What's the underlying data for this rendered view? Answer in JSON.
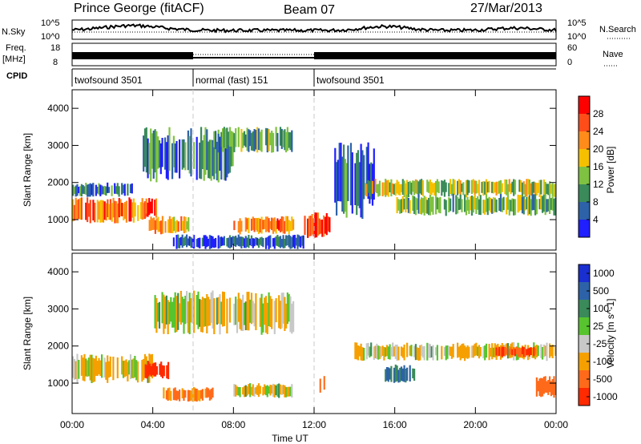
{
  "header": {
    "radar": "Prince George (fitACF)",
    "beam": "Beam 07",
    "date": "27/Mar/2013"
  },
  "summary": {
    "left_labels": {
      "nsky": "N.Sky",
      "freq": "Freq.",
      "freq_unit": "[MHz]",
      "cpid": "CPID"
    },
    "right_labels": {
      "nsearch": "N.Search",
      "nave": "Nave"
    },
    "nsky_ticks": [
      "10^5",
      "10^0"
    ],
    "nsearch_ticks": [
      "10^5",
      "10^0"
    ],
    "freq_ticks": [
      "18",
      "8"
    ],
    "nave_ticks": [
      "60",
      "0"
    ],
    "cpid_segments": [
      {
        "label": "twofsound 3501",
        "start_hour": 0,
        "end_hour": 6
      },
      {
        "label": "normal (fast) 151",
        "start_hour": 6,
        "end_hour": 12
      },
      {
        "label": "twofsound 3501",
        "start_hour": 12,
        "end_hour": 24
      }
    ]
  },
  "chart_data": [
    {
      "type": "heatmap",
      "title": "",
      "xlabel": "",
      "ylabel": "Slant Range [km]",
      "xlim": [
        0,
        24
      ],
      "ylim": [
        180,
        4500
      ],
      "y_ticks": [
        "1000",
        "2000",
        "3000",
        "4000"
      ],
      "colorbar": {
        "label": "Power [dB]",
        "range": [
          0,
          30
        ],
        "ticks": [
          "4",
          "8",
          "12",
          "16",
          "20",
          "24",
          "28"
        ],
        "colors": [
          "#1f1fff",
          "#2d62a8",
          "#3a8a5a",
          "#7fc241",
          "#f5c000",
          "#ff8c1a",
          "#ff4d1a",
          "#ff0000"
        ]
      },
      "echo_bands": [
        {
          "range_km": [
            900,
            1600
          ],
          "hours": [
            0,
            3.8
          ],
          "power_db": 22
        },
        {
          "range_km": [
            1600,
            2000
          ],
          "hours": [
            0,
            3
          ],
          "power_db": 8
        },
        {
          "range_km": [
            1000,
            1600
          ],
          "hours": [
            3.5,
            4.2
          ],
          "power_db": 24
        },
        {
          "range_km": [
            600,
            1100
          ],
          "hours": [
            3.8,
            5.8
          ],
          "power_db": 18
        },
        {
          "range_km": [
            2000,
            3500
          ],
          "hours": [
            3.5,
            8
          ],
          "power_db": 8
        },
        {
          "range_km": [
            2800,
            3500
          ],
          "hours": [
            7,
            11
          ],
          "power_db": 10
        },
        {
          "range_km": [
            600,
            1100
          ],
          "hours": [
            8,
            11
          ],
          "power_db": 22
        },
        {
          "range_km": [
            500,
            1200
          ],
          "hours": [
            11.5,
            12.8
          ],
          "power_db": 26
        },
        {
          "range_km": [
            1000,
            3100
          ],
          "hours": [
            13,
            15
          ],
          "power_db": 6
        },
        {
          "range_km": [
            1600,
            2100
          ],
          "hours": [
            14.5,
            24
          ],
          "power_db": 14
        },
        {
          "range_km": [
            1100,
            1700
          ],
          "hours": [
            16,
            24
          ],
          "power_db": 12
        },
        {
          "range_km": [
            200,
            600
          ],
          "hours": [
            5,
            11.5
          ],
          "power_db": 5
        }
      ]
    },
    {
      "type": "heatmap",
      "title": "",
      "xlabel": "Time UT",
      "ylabel": "Slant Range [km]",
      "xlim": [
        0,
        24
      ],
      "ylim": [
        180,
        4500
      ],
      "x_ticks": [
        "00:00",
        "04:00",
        "08:00",
        "12:00",
        "16:00",
        "20:00",
        "00:00"
      ],
      "y_ticks": [
        "1000",
        "2000",
        "3000",
        "4000"
      ],
      "colorbar": {
        "label": "Velocity [m s^-1]",
        "ticks": [
          "1000",
          "500",
          "100",
          "25",
          "-25",
          "-100",
          "-500",
          "-1000"
        ],
        "colors": [
          "#1a2fd0",
          "#2d62a8",
          "#3a8a5a",
          "#57c42f",
          "#c8c8c8",
          "#f5a000",
          "#ff6a1a",
          "#ff2a00"
        ]
      },
      "echo_bands": [
        {
          "range_km": [
            1000,
            1800
          ],
          "hours": [
            0,
            4
          ],
          "velocity": 0
        },
        {
          "range_km": [
            1100,
            1600
          ],
          "hours": [
            3.6,
            4.8
          ],
          "velocity": -800
        },
        {
          "range_km": [
            500,
            900
          ],
          "hours": [
            4.5,
            7
          ],
          "velocity": -300
        },
        {
          "range_km": [
            2300,
            3500
          ],
          "hours": [
            4,
            11
          ],
          "velocity": 0
        },
        {
          "range_km": [
            600,
            1000
          ],
          "hours": [
            8,
            11
          ],
          "velocity": 0
        },
        {
          "range_km": [
            700,
            1200
          ],
          "hours": [
            12.2,
            12.6
          ],
          "velocity": -200
        },
        {
          "range_km": [
            1600,
            2100
          ],
          "hours": [
            14,
            24
          ],
          "velocity": 0
        },
        {
          "range_km": [
            1000,
            1500
          ],
          "hours": [
            15.5,
            17
          ],
          "velocity": 300
        },
        {
          "range_km": [
            1700,
            2000
          ],
          "hours": [
            21,
            23
          ],
          "velocity": -600
        },
        {
          "range_km": [
            600,
            1200
          ],
          "hours": [
            23,
            24
          ],
          "velocity": -400
        }
      ]
    }
  ]
}
